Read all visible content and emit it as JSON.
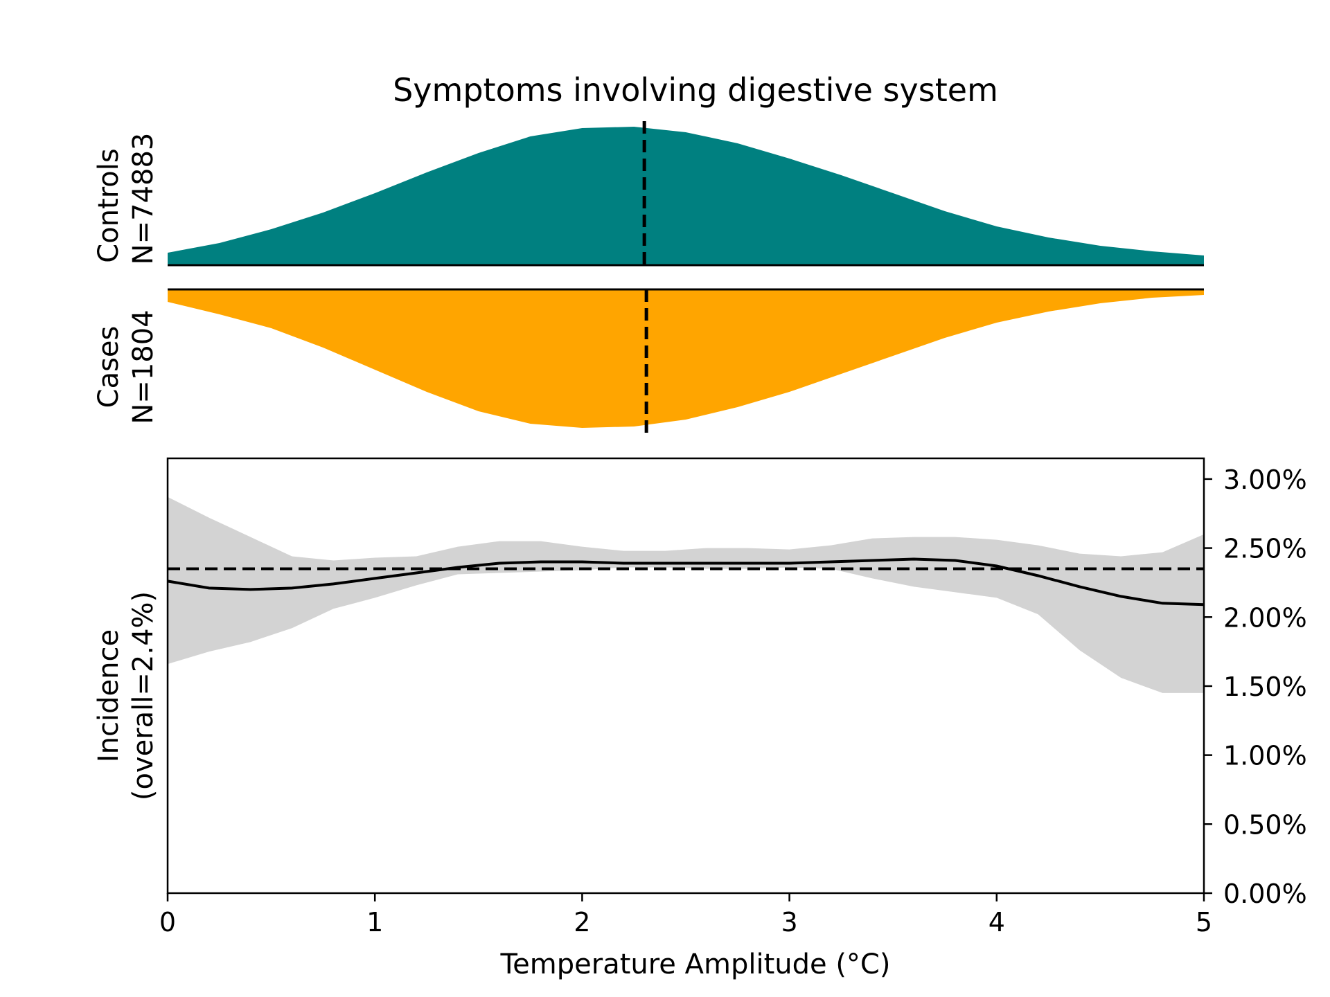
{
  "chart_data": {
    "type": "area",
    "title": "Symptoms involving digestive system",
    "xlabel": "Temperature Amplitude (°C)",
    "xlim": [
      0,
      5
    ],
    "x_ticks": [
      "0",
      "1",
      "2",
      "3",
      "4",
      "5"
    ],
    "controls": {
      "label_line1": "Controls",
      "label_line2": "N=74883",
      "color": "#008080",
      "median": 2.3,
      "x": [
        0,
        0.25,
        0.5,
        0.75,
        1.0,
        1.25,
        1.5,
        1.75,
        2.0,
        2.25,
        2.5,
        2.75,
        3.0,
        3.25,
        3.5,
        3.75,
        4.0,
        4.25,
        4.5,
        4.75,
        5.0
      ],
      "density": [
        0.09,
        0.16,
        0.26,
        0.38,
        0.52,
        0.67,
        0.81,
        0.93,
        0.99,
        1.0,
        0.96,
        0.88,
        0.77,
        0.65,
        0.52,
        0.39,
        0.28,
        0.2,
        0.14,
        0.1,
        0.07
      ]
    },
    "cases": {
      "label_line1": "Cases",
      "label_line2": "N=1804",
      "color": "#ffa500",
      "median": 2.31,
      "x": [
        0,
        0.25,
        0.5,
        0.75,
        1.0,
        1.25,
        1.5,
        1.75,
        2.0,
        2.25,
        2.5,
        2.75,
        3.0,
        3.25,
        3.5,
        3.75,
        4.0,
        4.25,
        4.5,
        4.75,
        5.0
      ],
      "density": [
        0.09,
        0.18,
        0.28,
        0.42,
        0.58,
        0.74,
        0.88,
        0.97,
        1.0,
        0.99,
        0.94,
        0.85,
        0.74,
        0.61,
        0.48,
        0.35,
        0.24,
        0.16,
        0.1,
        0.06,
        0.04
      ]
    },
    "incidence": {
      "ylabel_line1": "Incidence",
      "ylabel_line2": "(overall=2.4%)",
      "overall": 0.0235,
      "ylim": [
        0,
        0.0315
      ],
      "y_ticks": [
        0,
        0.005,
        0.01,
        0.015,
        0.02,
        0.025,
        0.03
      ],
      "y_tick_labels": [
        "0.00%",
        "0.50%",
        "1.00%",
        "1.50%",
        "2.00%",
        "2.50%",
        "3.00%"
      ],
      "line_color": "#000000",
      "band_color": "#d3d3d3",
      "x": [
        0,
        0.2,
        0.4,
        0.6,
        0.8,
        1.0,
        1.2,
        1.4,
        1.6,
        1.8,
        2.0,
        2.2,
        2.4,
        2.6,
        2.8,
        3.0,
        3.2,
        3.4,
        3.6,
        3.8,
        4.0,
        4.2,
        4.4,
        4.6,
        4.8,
        5.0
      ],
      "mean": [
        0.0226,
        0.0221,
        0.022,
        0.0221,
        0.0224,
        0.0228,
        0.0232,
        0.0236,
        0.0239,
        0.024,
        0.024,
        0.0239,
        0.0239,
        0.0239,
        0.0239,
        0.0239,
        0.024,
        0.0241,
        0.0242,
        0.0241,
        0.0237,
        0.023,
        0.0222,
        0.0215,
        0.021,
        0.0209
      ],
      "lower": [
        0.0166,
        0.0175,
        0.0182,
        0.0192,
        0.0206,
        0.0214,
        0.0223,
        0.0231,
        0.0232,
        0.0233,
        0.0234,
        0.0236,
        0.0236,
        0.0235,
        0.0235,
        0.0236,
        0.0235,
        0.0228,
        0.0222,
        0.0218,
        0.0214,
        0.0202,
        0.0176,
        0.0156,
        0.0145,
        0.0145
      ],
      "upper": [
        0.0287,
        0.0272,
        0.0258,
        0.0244,
        0.0241,
        0.0243,
        0.0244,
        0.0251,
        0.0255,
        0.0255,
        0.0251,
        0.0248,
        0.0248,
        0.025,
        0.025,
        0.0249,
        0.0252,
        0.0257,
        0.0258,
        0.0258,
        0.0256,
        0.0252,
        0.0246,
        0.0244,
        0.0247,
        0.026
      ]
    }
  }
}
